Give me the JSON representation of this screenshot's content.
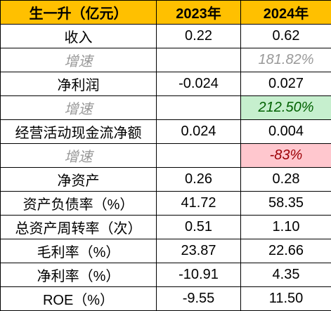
{
  "header": [
    "生一升（亿元）",
    "2023年",
    "2024年"
  ],
  "rows": [
    {
      "label": "收入",
      "v2023": "0.22",
      "v2024": "0.62"
    },
    {
      "label": "增速",
      "v2024": "181.82%",
      "italic": true
    },
    {
      "label": "净利润",
      "v2023": "-0.024",
      "v2024": "0.027"
    },
    {
      "label": "增速",
      "v2024": "212.50%",
      "italic": true,
      "fill": "#C6EFCE",
      "color": "#006100"
    },
    {
      "label": "经营活动现金流净额",
      "v2023": "0.024",
      "v2024": "0.004"
    },
    {
      "label": "增速",
      "v2024": "-83%",
      "italic": true,
      "fill": "#FFC7CE",
      "color": "#9C0006"
    },
    {
      "label": "净资产",
      "v2023": "0.26",
      "v2024": "0.28"
    },
    {
      "label": "资产负债率（%）",
      "v2023": "41.72",
      "v2024": "58.35"
    },
    {
      "label": "总资产周转率（次）",
      "v2023": "0.51",
      "v2024": "1.10"
    },
    {
      "label": "毛利率（%）",
      "v2023": "23.87",
      "v2024": "22.66"
    },
    {
      "label": "净利率（%）",
      "v2023": "-10.91",
      "v2024": "4.35"
    },
    {
      "label": "ROE（%）",
      "v2023": "-9.55",
      "v2024": "11.50"
    }
  ]
}
